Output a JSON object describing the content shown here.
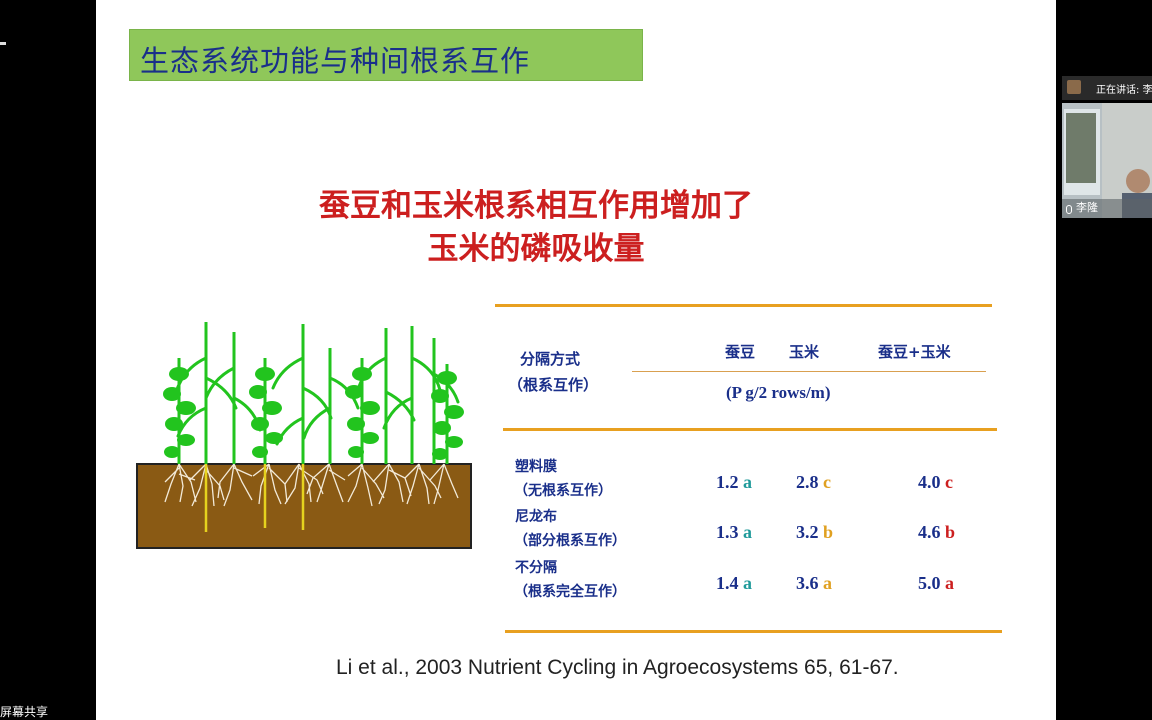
{
  "app": {
    "share_label": "屏幕共享",
    "speaker_bar": "正在讲话: 李",
    "participant_name": "李隆"
  },
  "slide": {
    "section_title": "生态系统功能与种间根系互作",
    "headline_line1": "蚕豆和玉米根系相互作用增加了",
    "headline_line2": "玉米的磷吸收量",
    "table": {
      "method_header_line1": "分隔方式",
      "method_header_line2": "（根系互作）",
      "col_headers": [
        "蚕豆",
        "玉米",
        "蚕豆+玉米"
      ],
      "unit": "(P g/2 rows/m)",
      "rows": [
        {
          "label1": "塑料膜",
          "label2": "（无根系互作）",
          "cells": [
            {
              "num": "1.2",
              "letter": "a"
            },
            {
              "num": "2.8",
              "letter": "c"
            },
            {
              "num": "4.0",
              "letter": "c"
            }
          ]
        },
        {
          "label1": "尼龙布",
          "label2": "（部分根系互作）",
          "cells": [
            {
              "num": "1.3",
              "letter": "a"
            },
            {
              "num": "3.2",
              "letter": "b"
            },
            {
              "num": "4.6",
              "letter": "b"
            }
          ]
        },
        {
          "label1": "不分隔",
          "label2": "（根系完全互作）",
          "cells": [
            {
              "num": "1.4",
              "letter": "a"
            },
            {
              "num": "3.6",
              "letter": "a"
            },
            {
              "num": "5.0",
              "letter": "a"
            }
          ]
        }
      ],
      "letter_colors": [
        "#1f9a9a",
        "#e0a020",
        "#cc1f1f"
      ]
    },
    "citation": "Li et al., 2003 Nutrient Cycling in Agroecosystems 65, 61-67."
  },
  "colors": {
    "title_bg": "#8fc75a",
    "title_text": "#1a2f8a",
    "headline": "#cc1f1f",
    "rule": "#e8a020",
    "soil": "#8a5a14",
    "plant": "#22c41e"
  }
}
